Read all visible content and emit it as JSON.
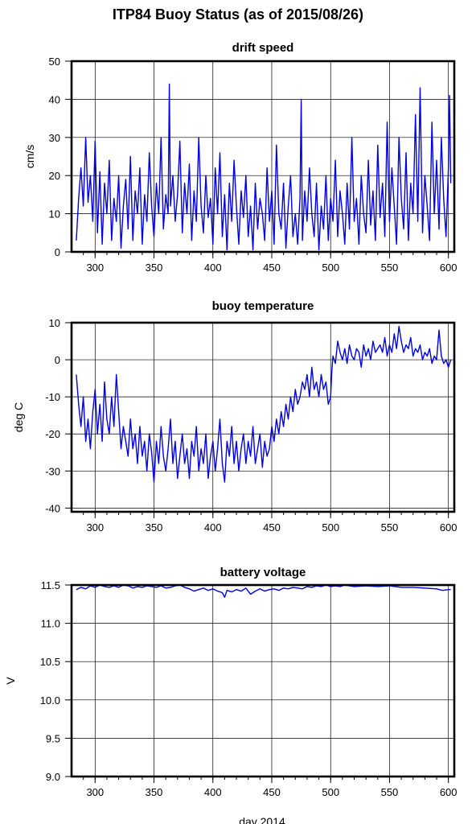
{
  "title": "ITP84 Buoy Status (as of 2015/08/26)",
  "xlabel": "day 2014",
  "colors": {
    "line": "#0000e6",
    "grid": "#000000",
    "frame": "#000000"
  },
  "chart_data": [
    {
      "type": "line",
      "title": "drift speed",
      "xlabel": "",
      "ylabel": "cm/s",
      "xlim": [
        280,
        605
      ],
      "ylim": [
        0,
        50
      ],
      "xticks": [
        300,
        350,
        400,
        450,
        500,
        550,
        600
      ],
      "yticks": [
        0,
        10,
        20,
        30,
        40,
        50
      ],
      "ytick_labels": [
        "0",
        "10",
        "20",
        "30",
        "40",
        "50"
      ],
      "series": [
        {
          "x": [
            284,
            286,
            288,
            290,
            292,
            294,
            296,
            298,
            300,
            302,
            304,
            306,
            308,
            310,
            312,
            314,
            316,
            318,
            320,
            322,
            324,
            326,
            328,
            330,
            332,
            334,
            336,
            338,
            340,
            342,
            344,
            346,
            348,
            350,
            352,
            354,
            356,
            358,
            360,
            362,
            363,
            364,
            366,
            368,
            370,
            372,
            374,
            376,
            378,
            380,
            382,
            384,
            386,
            388,
            390,
            392,
            394,
            396,
            398,
            400,
            402,
            404,
            406,
            408,
            410,
            412,
            414,
            416,
            418,
            420,
            422,
            424,
            426,
            428,
            430,
            432,
            434,
            436,
            438,
            440,
            442,
            444,
            446,
            448,
            450,
            452,
            454,
            456,
            458,
            460,
            462,
            464,
            466,
            468,
            470,
            472,
            474,
            475,
            476,
            478,
            480,
            482,
            484,
            486,
            488,
            490,
            492,
            494,
            496,
            498,
            500,
            502,
            504,
            506,
            508,
            510,
            512,
            514,
            516,
            518,
            520,
            522,
            524,
            526,
            528,
            530,
            532,
            534,
            536,
            538,
            540,
            542,
            544,
            546,
            548,
            550,
            552,
            554,
            556,
            558,
            560,
            562,
            564,
            566,
            568,
            570,
            572,
            574,
            576,
            578,
            580,
            582,
            584,
            586,
            588,
            590,
            592,
            594,
            596,
            598,
            600,
            601,
            602
          ],
          "y": [
            3,
            14,
            22,
            12,
            30,
            13,
            20,
            8,
            29,
            5,
            21,
            2,
            18,
            10,
            24,
            3,
            14,
            8,
            20,
            1,
            12,
            19,
            6,
            25,
            3,
            16,
            10,
            22,
            2,
            15,
            8,
            26,
            12,
            4,
            18,
            10,
            30,
            6,
            15,
            10,
            44,
            12,
            20,
            8,
            15,
            29,
            5,
            18,
            10,
            23,
            3,
            16,
            8,
            30,
            12,
            5,
            20,
            9,
            14,
            2,
            22,
            10,
            26,
            4,
            15,
            0.5,
            18,
            8,
            24,
            12,
            2,
            16,
            9,
            20,
            4,
            12,
            0.5,
            18,
            6,
            14,
            10,
            3,
            22,
            8,
            16,
            2,
            28,
            10,
            6,
            18,
            1,
            12,
            20,
            4,
            10,
            2,
            14,
            40,
            3,
            16,
            8,
            22,
            10,
            4,
            18,
            0.5,
            12,
            6,
            20,
            3,
            14,
            8,
            24,
            4,
            16,
            10,
            2,
            18,
            6,
            30,
            8,
            14,
            2,
            20,
            10,
            5,
            24,
            7,
            16,
            3,
            28,
            9,
            18,
            4,
            34,
            8,
            22,
            12,
            2,
            30,
            14,
            6,
            26,
            3,
            18,
            10,
            36,
            8,
            43,
            5,
            20,
            12,
            3,
            34,
            10,
            24,
            6,
            30,
            14,
            4,
            22,
            41,
            18
          ]
        }
      ]
    },
    {
      "type": "line",
      "title": "buoy temperature",
      "xlabel": "",
      "ylabel": "deg C",
      "xlim": [
        280,
        605
      ],
      "ylim": [
        -41,
        10
      ],
      "xticks": [
        300,
        350,
        400,
        450,
        500,
        550,
        600
      ],
      "yticks": [
        -40,
        -30,
        -20,
        -10,
        0,
        10
      ],
      "ytick_labels": [
        "-40",
        "-30",
        "-20",
        "-10",
        "0",
        "10"
      ],
      "series": [
        {
          "x": [
            284,
            286,
            288,
            290,
            292,
            294,
            296,
            298,
            300,
            302,
            304,
            306,
            308,
            310,
            312,
            314,
            316,
            318,
            320,
            322,
            324,
            326,
            328,
            330,
            332,
            334,
            336,
            338,
            340,
            342,
            344,
            346,
            348,
            350,
            352,
            354,
            356,
            358,
            360,
            362,
            364,
            366,
            368,
            370,
            372,
            374,
            376,
            378,
            380,
            382,
            384,
            386,
            388,
            390,
            392,
            394,
            396,
            398,
            400,
            402,
            404,
            406,
            408,
            410,
            412,
            414,
            416,
            418,
            420,
            422,
            424,
            426,
            428,
            430,
            432,
            434,
            436,
            438,
            440,
            442,
            444,
            446,
            448,
            450,
            452,
            454,
            456,
            458,
            460,
            462,
            464,
            466,
            468,
            470,
            472,
            474,
            476,
            478,
            480,
            482,
            484,
            486,
            488,
            490,
            492,
            494,
            496,
            498,
            500,
            501,
            502,
            504,
            506,
            508,
            510,
            512,
            514,
            516,
            518,
            520,
            522,
            524,
            526,
            528,
            530,
            532,
            534,
            536,
            538,
            540,
            542,
            544,
            546,
            548,
            550,
            552,
            554,
            556,
            558,
            560,
            562,
            564,
            566,
            568,
            570,
            572,
            574,
            576,
            578,
            580,
            582,
            584,
            586,
            588,
            590,
            592,
            594,
            596,
            598,
            600,
            602
          ],
          "y": [
            -4,
            -12,
            -18,
            -10,
            -22,
            -16,
            -24,
            -14,
            -8,
            -20,
            -12,
            -22,
            -6,
            -16,
            -20,
            -10,
            -18,
            -4,
            -14,
            -24,
            -18,
            -22,
            -26,
            -16,
            -24,
            -20,
            -28,
            -18,
            -26,
            -22,
            -30,
            -20,
            -25,
            -33,
            -22,
            -28,
            -18,
            -26,
            -30,
            -24,
            -16,
            -28,
            -22,
            -32,
            -26,
            -20,
            -28,
            -24,
            -32,
            -22,
            -26,
            -18,
            -30,
            -24,
            -28,
            -20,
            -32,
            -26,
            -22,
            -30,
            -24,
            -16,
            -28,
            -33,
            -22,
            -26,
            -18,
            -28,
            -22,
            -30,
            -24,
            -20,
            -28,
            -22,
            -26,
            -18,
            -28,
            -24,
            -20,
            -29,
            -22,
            -26,
            -24,
            -18,
            -22,
            -16,
            -20,
            -14,
            -18,
            -12,
            -16,
            -10,
            -14,
            -8,
            -12,
            -10,
            -6,
            -8,
            -4,
            -10,
            -2,
            -8,
            -6,
            -10,
            -4,
            -8,
            -6,
            -12,
            -10,
            -3,
            1,
            -1,
            5,
            2,
            0,
            3,
            -1,
            4,
            1,
            0,
            3,
            2,
            -2,
            4,
            1,
            3,
            0,
            5,
            2,
            3,
            4,
            2,
            6,
            1,
            4,
            2,
            7,
            3,
            9,
            5,
            2,
            4,
            3,
            6,
            1,
            3,
            2,
            4,
            0,
            2,
            1,
            3,
            -1,
            1,
            0,
            8,
            1,
            -1,
            0,
            -2,
            0
          ]
        }
      ]
    },
    {
      "type": "line",
      "title": "battery voltage",
      "xlabel": "",
      "ylabel": "V",
      "xlim": [
        280,
        605
      ],
      "ylim": [
        9.0,
        11.5
      ],
      "xticks": [
        300,
        350,
        400,
        450,
        500,
        550,
        600
      ],
      "yticks": [
        9.0,
        9.5,
        10.0,
        10.5,
        11.0,
        11.5
      ],
      "ytick_labels": [
        "9.0",
        "9.5",
        "10.0",
        "10.5",
        "11.0",
        "11.5"
      ],
      "series": [
        {
          "x": [
            284,
            288,
            292,
            296,
            300,
            304,
            308,
            312,
            316,
            320,
            324,
            328,
            332,
            336,
            340,
            344,
            348,
            352,
            356,
            360,
            364,
            368,
            372,
            376,
            380,
            384,
            388,
            392,
            396,
            400,
            404,
            408,
            410,
            412,
            416,
            420,
            424,
            428,
            432,
            436,
            440,
            444,
            448,
            452,
            456,
            460,
            464,
            468,
            472,
            476,
            480,
            484,
            488,
            492,
            496,
            500,
            504,
            508,
            512,
            516,
            520,
            530,
            540,
            550,
            560,
            570,
            580,
            590,
            595,
            600,
            602
          ],
          "y": [
            11.44,
            11.47,
            11.45,
            11.49,
            11.47,
            11.5,
            11.48,
            11.47,
            11.49,
            11.47,
            11.5,
            11.49,
            11.46,
            11.48,
            11.47,
            11.49,
            11.48,
            11.47,
            11.49,
            11.46,
            11.47,
            11.49,
            11.5,
            11.47,
            11.45,
            11.42,
            11.44,
            11.46,
            11.43,
            11.45,
            11.42,
            11.4,
            11.34,
            11.43,
            11.41,
            11.44,
            11.42,
            11.46,
            11.38,
            11.42,
            11.45,
            11.42,
            11.44,
            11.45,
            11.43,
            11.46,
            11.45,
            11.47,
            11.46,
            11.45,
            11.48,
            11.47,
            11.49,
            11.48,
            11.5,
            11.48,
            11.49,
            11.48,
            11.5,
            11.49,
            11.48,
            11.49,
            11.48,
            11.49,
            11.47,
            11.47,
            11.46,
            11.45,
            11.43,
            11.44,
            11.44
          ]
        }
      ]
    }
  ]
}
